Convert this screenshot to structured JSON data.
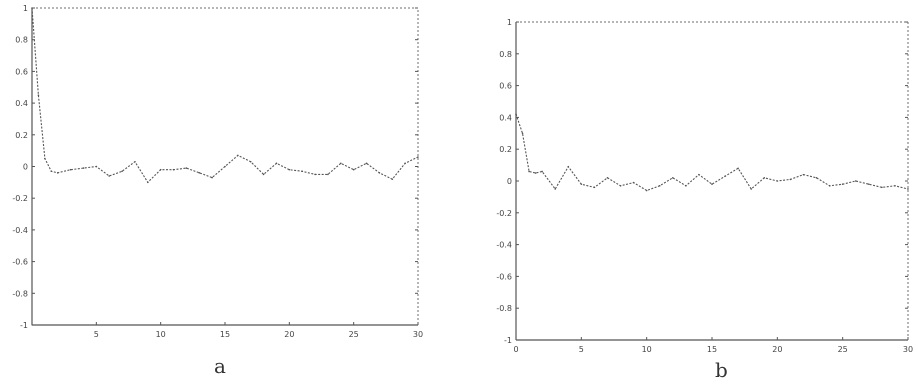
{
  "chart_data": [
    {
      "type": "line",
      "caption": "a",
      "x": [
        0,
        0.5,
        1,
        1.5,
        2,
        3,
        4,
        5,
        6,
        7,
        8,
        9,
        10,
        11,
        12,
        13,
        14,
        15,
        16,
        17,
        18,
        19,
        20,
        21,
        22,
        23,
        24,
        25,
        26,
        27,
        28,
        29,
        30
      ],
      "series": [
        {
          "values": [
            1,
            0.45,
            0.05,
            -0.03,
            -0.04,
            -0.02,
            -0.01,
            0.0,
            -0.06,
            -0.03,
            0.03,
            -0.1,
            -0.02,
            -0.02,
            -0.01,
            -0.04,
            -0.07,
            0.0,
            0.07,
            0.03,
            -0.05,
            0.02,
            -0.02,
            -0.03,
            -0.05,
            -0.05,
            0.02,
            -0.02,
            0.02,
            -0.04,
            -0.08,
            0.02,
            0.06
          ]
        }
      ],
      "xlim": [
        0,
        30
      ],
      "ylim": [
        -1,
        1
      ],
      "xticks": [
        5,
        10,
        15,
        20,
        25,
        30
      ],
      "yticks": [
        -1,
        -0.8,
        -0.6,
        -0.4,
        -0.2,
        0,
        0.2,
        0.4,
        0.6,
        0.8,
        1
      ],
      "xtick_labels": [
        "5",
        "10",
        "15",
        "20",
        "25",
        "30"
      ],
      "ytick_labels": [
        "-1",
        "-0.8",
        "-0.6",
        "-0.4",
        "-0.2",
        "0",
        "0.2",
        "0.4",
        "0.6",
        "0.8",
        "1"
      ],
      "grid": false
    },
    {
      "type": "line",
      "caption": "b",
      "x": [
        0,
        0.5,
        1,
        1.5,
        2,
        3,
        4,
        5,
        6,
        7,
        8,
        9,
        10,
        11,
        12,
        13,
        14,
        15,
        16,
        17,
        18,
        19,
        20,
        21,
        22,
        23,
        24,
        25,
        26,
        27,
        28,
        29,
        30
      ],
      "series": [
        {
          "values": [
            0.42,
            0.3,
            0.06,
            0.05,
            0.06,
            -0.05,
            0.09,
            -0.02,
            -0.04,
            0.02,
            -0.03,
            -0.01,
            -0.06,
            -0.03,
            0.02,
            -0.03,
            0.04,
            -0.02,
            0.03,
            0.08,
            -0.05,
            0.02,
            0.0,
            0.01,
            0.04,
            0.02,
            -0.03,
            -0.02,
            0.0,
            -0.02,
            -0.04,
            -0.03,
            -0.05
          ]
        }
      ],
      "xlim": [
        0,
        30
      ],
      "ylim": [
        -1,
        1
      ],
      "xticks": [
        0,
        5,
        10,
        15,
        20,
        25,
        30
      ],
      "yticks": [
        -1,
        -0.8,
        -0.6,
        -0.4,
        -0.2,
        0,
        0.2,
        0.4,
        0.6,
        0.8,
        1
      ],
      "xtick_labels": [
        "0",
        "5",
        "10",
        "15",
        "20",
        "25",
        "30"
      ],
      "ytick_labels": [
        "-1",
        "-0.8",
        "-0.6",
        "-0.4",
        "-0.2",
        "0",
        "0.2",
        "0.4",
        "0.6",
        "0.8",
        "1"
      ],
      "grid": false
    }
  ]
}
